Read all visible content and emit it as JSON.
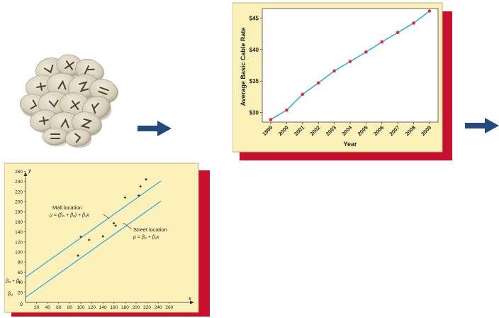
{
  "chart_data": [
    {
      "type": "line",
      "xlabel": "Year",
      "ylabel": "Average Basic Cable Rate",
      "x": [
        "1999",
        "2000",
        "2001",
        "2002",
        "2003",
        "2004",
        "2005",
        "2006",
        "2007",
        "2008",
        "2009"
      ],
      "y": [
        28.9,
        30.4,
        32.9,
        34.7,
        36.6,
        38.1,
        39.6,
        41.2,
        42.7,
        44.2,
        46.1
      ],
      "yticks": [
        "$30",
        "$35",
        "$40",
        "$45"
      ],
      "ylim": [
        28.5,
        46.5
      ],
      "colors": {
        "line": "#2aa6e8",
        "marker": "#e8282e",
        "panel": "#fcf2b9",
        "shadow": "#c8102e"
      }
    },
    {
      "type": "scatter",
      "xlabel": "x",
      "ylabel": "y",
      "xticks": [
        "20",
        "40",
        "60",
        "80",
        "100",
        "120",
        "140",
        "160",
        "180",
        "200",
        "220",
        "240",
        "260"
      ],
      "yticks": [
        "20",
        "40",
        "60",
        "80",
        "100",
        "120",
        "140",
        "160",
        "180",
        "200",
        "220",
        "240",
        "260"
      ],
      "origin_label": "0",
      "xlim": [
        0,
        280
      ],
      "ylim": [
        0,
        270
      ],
      "points": [
        {
          "x": 95,
          "y": 93
        },
        {
          "x": 100,
          "y": 130
        },
        {
          "x": 115,
          "y": 124
        },
        {
          "x": 140,
          "y": 131
        },
        {
          "x": 160,
          "y": 157
        },
        {
          "x": 163,
          "y": 152
        },
        {
          "x": 180,
          "y": 208
        },
        {
          "x": 205,
          "y": 212
        },
        {
          "x": 208,
          "y": 230
        },
        {
          "x": 218,
          "y": 244
        }
      ],
      "lines": [
        {
          "intercept": 50,
          "slope": 0.78
        },
        {
          "intercept": 10,
          "slope": 0.78
        }
      ],
      "intercept_labels": {
        "upper": "β₀ + β₂",
        "lower": "β₀"
      },
      "annotations": {
        "mall_title": "Mall location",
        "mall_formula": "μ = (β₀ + β₂) + β₁x",
        "street_title": "Street location",
        "street_formula": "μ = β₀ + β₁x"
      },
      "colors": {
        "line": "#2aa6e8",
        "panel": "#fcf2b9",
        "shadow": "#c8102e"
      }
    }
  ],
  "arrows": {
    "color": "#24497e"
  },
  "image": {
    "name": "rune-stones-photo",
    "stone_color": "#d9d2c0",
    "stone_shadow": "#b7ad97",
    "glyph_color": "#4a3f33"
  }
}
